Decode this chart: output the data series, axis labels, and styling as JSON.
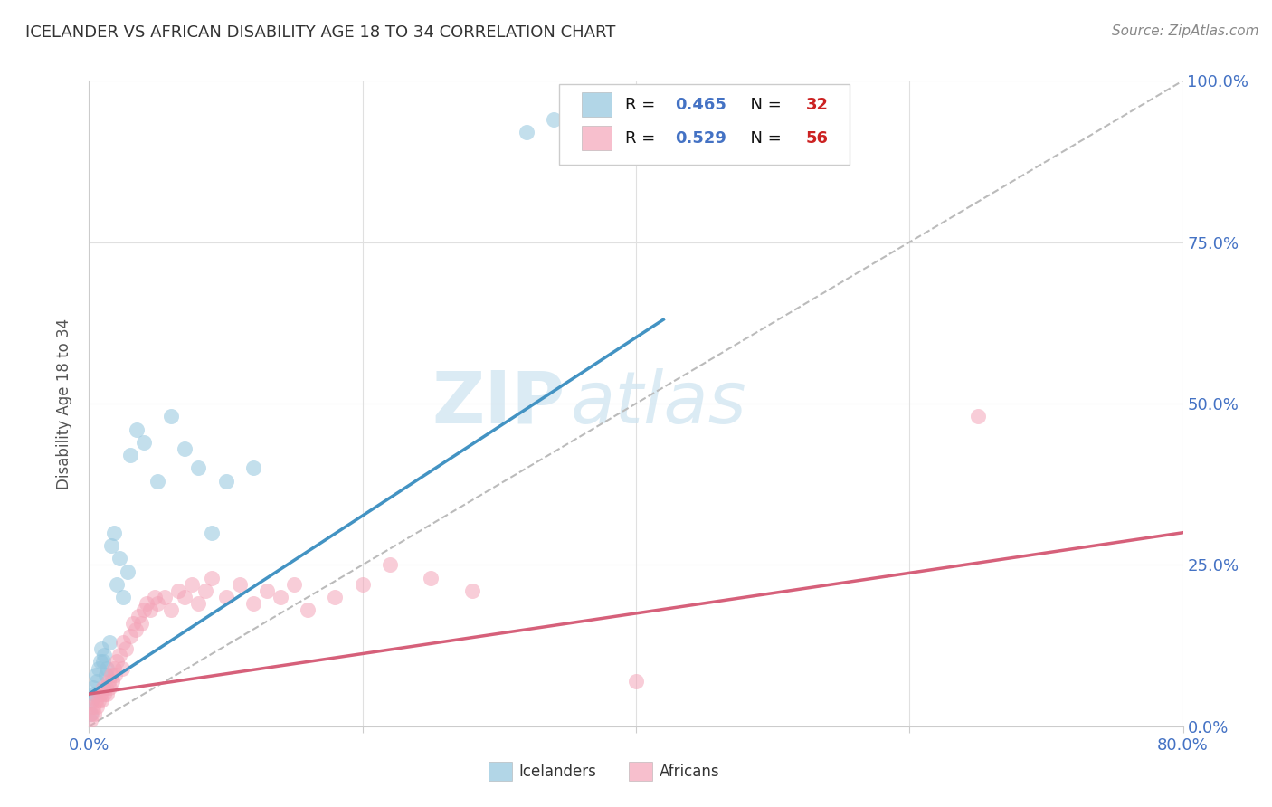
{
  "title": "ICELANDER VS AFRICAN DISABILITY AGE 18 TO 34 CORRELATION CHART",
  "source": "Source: ZipAtlas.com",
  "ylabel": "Disability Age 18 to 34",
  "xlim": [
    0.0,
    0.8
  ],
  "ylim": [
    0.0,
    1.0
  ],
  "icelander_color": "#92c5de",
  "african_color": "#f4a4b8",
  "icelander_line_color": "#4393c3",
  "african_line_color": "#d6607a",
  "diagonal_color": "#bbbbbb",
  "R_icelander": 0.465,
  "N_icelander": 32,
  "R_african": 0.529,
  "N_african": 56,
  "icelander_x": [
    0.001,
    0.002,
    0.003,
    0.004,
    0.005,
    0.006,
    0.007,
    0.008,
    0.009,
    0.01,
    0.011,
    0.012,
    0.013,
    0.015,
    0.016,
    0.018,
    0.02,
    0.022,
    0.025,
    0.028,
    0.03,
    0.035,
    0.04,
    0.05,
    0.06,
    0.07,
    0.08,
    0.09,
    0.1,
    0.12,
    0.32,
    0.34
  ],
  "icelander_y": [
    0.02,
    0.04,
    0.06,
    0.05,
    0.08,
    0.07,
    0.09,
    0.1,
    0.12,
    0.1,
    0.11,
    0.08,
    0.09,
    0.13,
    0.28,
    0.3,
    0.22,
    0.26,
    0.2,
    0.24,
    0.42,
    0.46,
    0.44,
    0.38,
    0.48,
    0.43,
    0.4,
    0.3,
    0.38,
    0.4,
    0.92,
    0.94
  ],
  "african_x": [
    0.001,
    0.002,
    0.003,
    0.004,
    0.005,
    0.006,
    0.007,
    0.008,
    0.009,
    0.01,
    0.011,
    0.012,
    0.013,
    0.014,
    0.015,
    0.016,
    0.017,
    0.018,
    0.019,
    0.02,
    0.022,
    0.024,
    0.025,
    0.027,
    0.03,
    0.032,
    0.034,
    0.036,
    0.038,
    0.04,
    0.042,
    0.045,
    0.048,
    0.05,
    0.055,
    0.06,
    0.065,
    0.07,
    0.075,
    0.08,
    0.085,
    0.09,
    0.1,
    0.11,
    0.12,
    0.13,
    0.14,
    0.15,
    0.16,
    0.18,
    0.2,
    0.22,
    0.25,
    0.28,
    0.4,
    0.65
  ],
  "african_y": [
    0.01,
    0.02,
    0.03,
    0.02,
    0.04,
    0.03,
    0.04,
    0.05,
    0.04,
    0.06,
    0.05,
    0.06,
    0.05,
    0.07,
    0.06,
    0.08,
    0.07,
    0.09,
    0.08,
    0.1,
    0.11,
    0.09,
    0.13,
    0.12,
    0.14,
    0.16,
    0.15,
    0.17,
    0.16,
    0.18,
    0.19,
    0.18,
    0.2,
    0.19,
    0.2,
    0.18,
    0.21,
    0.2,
    0.22,
    0.19,
    0.21,
    0.23,
    0.2,
    0.22,
    0.19,
    0.21,
    0.2,
    0.22,
    0.18,
    0.2,
    0.22,
    0.25,
    0.23,
    0.21,
    0.07,
    0.48
  ],
  "icelander_line_x": [
    0.0,
    0.42
  ],
  "icelander_line_y": [
    0.05,
    0.63
  ],
  "african_line_x": [
    0.0,
    0.8
  ],
  "african_line_y": [
    0.05,
    0.3
  ],
  "watermark_zip": "ZIP",
  "watermark_atlas": "atlas",
  "background_color": "#ffffff",
  "grid_color": "#e0e0e0",
  "legend_R_color": "#4472c4",
  "legend_N_color": "#cc2222",
  "legend_text_color": "#111111"
}
